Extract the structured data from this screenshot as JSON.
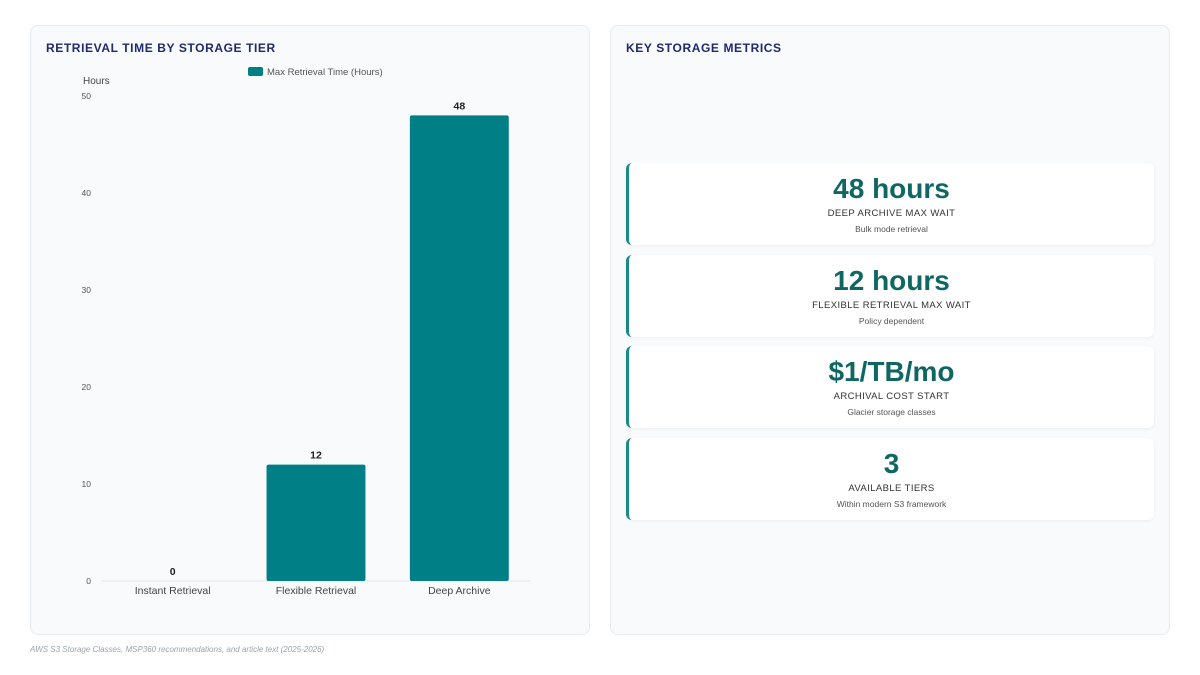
{
  "chart_panel": {
    "title": "RETRIEVAL TIME BY STORAGE TIER"
  },
  "chart_data": {
    "type": "bar",
    "categories": [
      "Instant Retrieval",
      "Flexible Retrieval",
      "Deep Archive"
    ],
    "series": [
      {
        "name": "Max Retrieval Time (Hours)",
        "values": [
          0,
          12,
          48
        ],
        "color": "#007f86"
      }
    ],
    "ylabel": "Hours",
    "ylim": [
      0,
      50
    ],
    "yticks": [
      0,
      10,
      20,
      30,
      40,
      50
    ],
    "legend_position": "top-center",
    "grid": false
  },
  "metrics_panel": {
    "title": "KEY STORAGE METRICS",
    "cards": [
      {
        "value": "48 hours",
        "label": "DEEP ARCHIVE MAX WAIT",
        "sub": "Bulk mode retrieval"
      },
      {
        "value": "12 hours",
        "label": "FLEXIBLE RETRIEVAL MAX WAIT",
        "sub": "Policy dependent"
      },
      {
        "value": "$1/TB/mo",
        "label": "ARCHIVAL COST START",
        "sub": "Glacier storage classes"
      },
      {
        "value": "3",
        "label": "AVAILABLE TIERS",
        "sub": "Within modern S3 framework"
      }
    ]
  },
  "footer": {
    "source": "AWS S3 Storage Classes, MSP360 recommendations, and article text (2025-2026)"
  },
  "colors": {
    "bar": "#007f86",
    "accent": "#1a8a86",
    "title": "#1e2a6e",
    "metric_value": "#0f6764"
  }
}
